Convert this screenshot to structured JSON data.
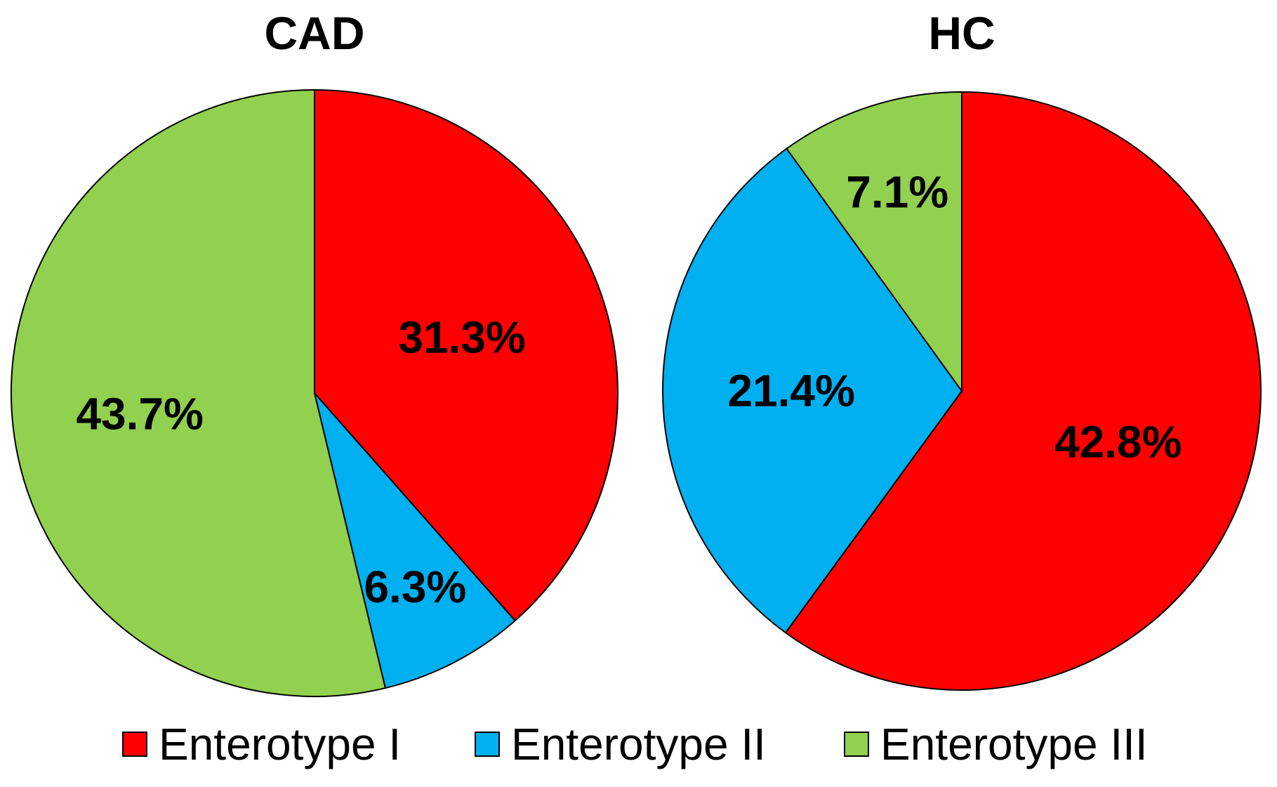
{
  "chart_data": [
    {
      "type": "pie",
      "title": "CAD",
      "categories": [
        "Enterotype I",
        "Enterotype II",
        "Enterotype III"
      ],
      "values": [
        31.3,
        6.3,
        43.7
      ],
      "value_labels": [
        "31.3%",
        "6.3%",
        "43.7%"
      ],
      "colors": [
        "#ff0000",
        "#00b0f0",
        "#92d050"
      ],
      "start": "12 o'clock",
      "direction": "clockwise"
    },
    {
      "type": "pie",
      "title": "HC",
      "categories": [
        "Enterotype I",
        "Enterotype II",
        "Enterotype III"
      ],
      "values": [
        42.8,
        21.4,
        7.1
      ],
      "value_labels": [
        "42.8%",
        "21.4%",
        "7.1%"
      ],
      "colors": [
        "#ff0000",
        "#00b0f0",
        "#92d050"
      ],
      "start": "12 o'clock",
      "direction": "clockwise"
    }
  ],
  "legend": {
    "position": "bottom",
    "items": [
      {
        "label": "Enterotype I",
        "color": "#ff0000"
      },
      {
        "label": "Enterotype II",
        "color": "#00b0f0"
      },
      {
        "label": "Enterotype III",
        "color": "#92d050"
      }
    ]
  }
}
